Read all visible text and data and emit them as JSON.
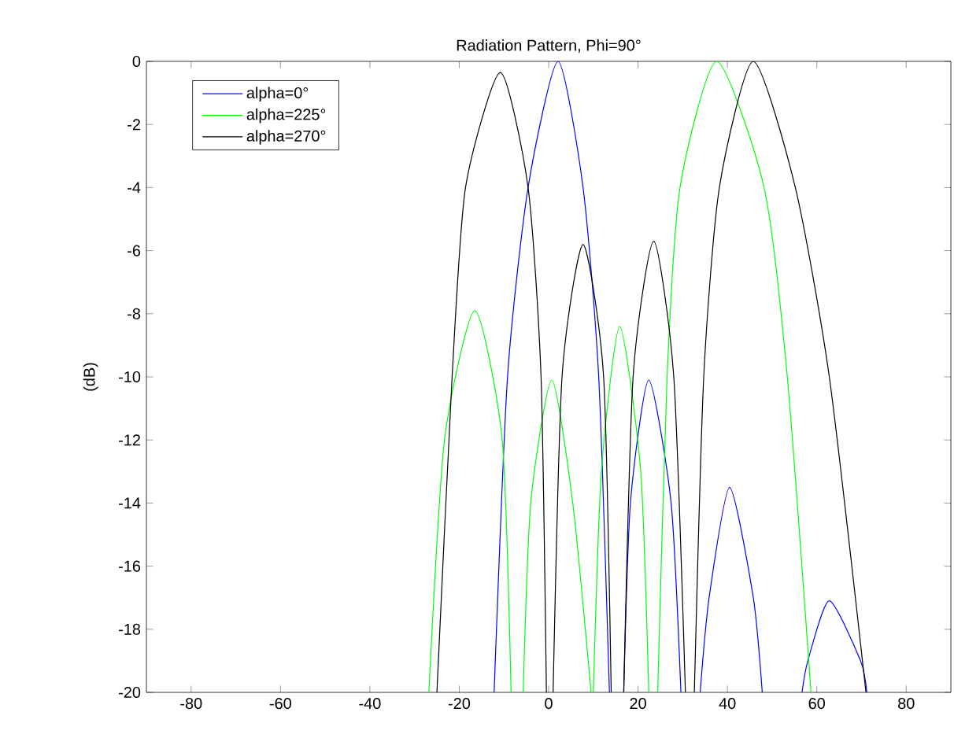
{
  "chart_data": {
    "type": "line",
    "title": "Radiation Pattern, Phi=90°",
    "ylabel": "(dB)",
    "xlim": [
      -90,
      90
    ],
    "xticks": [
      -80,
      -60,
      -40,
      -20,
      0,
      20,
      40,
      60,
      80
    ],
    "ylim": [
      -20,
      0
    ],
    "yticks": [
      -20,
      -18,
      -16,
      -14,
      -12,
      -10,
      -8,
      -6,
      -4,
      -2,
      0
    ],
    "legend": "top left",
    "grid": false,
    "marker": "none",
    "line_style": "solid",
    "series": [
      {
        "name": "alpha=0°",
        "color": "#0000ff",
        "x": [
          -12.2,
          -9.2,
          -4.6,
          2.1,
          7.7,
          11.2,
          13.6,
          15,
          16.8,
          18.3,
          22.4,
          27.4,
          29.6,
          31,
          33.9,
          35.9,
          40.5,
          45.8,
          47.8,
          50,
          56.7,
          58,
          62.8,
          69.8,
          71.2
        ],
        "values": [
          -20,
          -10,
          -4,
          0,
          -4,
          -10,
          -20,
          null,
          -20,
          -14,
          -10.1,
          -14,
          -20,
          null,
          -20,
          -17,
          -13.5,
          -17,
          -20,
          null,
          -20,
          -19,
          -17.1,
          -19,
          -20
        ]
      },
      {
        "name": "alpha=225°",
        "color": "#00ff00",
        "x": [
          -26.8,
          -23.3,
          -16.5,
          -10.4,
          -8.4,
          -7,
          -5.7,
          -4,
          0.7,
          5.4,
          9.5,
          9.8,
          10,
          11.8,
          15.9,
          20.6,
          22.4,
          23.5,
          24.4,
          26.5,
          29.4,
          37.6,
          48.2,
          53.4,
          58.7
        ],
        "values": [
          -20,
          -12,
          -7.9,
          -12,
          -20,
          null,
          -20,
          -14,
          -10.1,
          -14,
          -20,
          null,
          -20,
          -13,
          -8.4,
          -13,
          -20,
          null,
          -20,
          -10,
          -4,
          0,
          -4,
          -10,
          -20
        ]
      },
      {
        "name": "alpha=270°",
        "color": "#000000",
        "x": [
          -25,
          -21.6,
          -18.6,
          -10.8,
          -4.6,
          -1.7,
          -0.5,
          0.2,
          1,
          3,
          7.7,
          12.3,
          14,
          15.5,
          16.8,
          18.9,
          23.5,
          28,
          30.6,
          31.5,
          32.6,
          34.7,
          38.2,
          45.8,
          55.2,
          62.8,
          71
        ],
        "values": [
          -20,
          -10,
          -4,
          -0.35,
          -4,
          -10,
          -20,
          null,
          -20,
          -10,
          -5.8,
          -10,
          -20,
          null,
          -20,
          -10,
          -5.7,
          -10,
          -20,
          null,
          -20,
          -10,
          -4,
          0,
          -4,
          -10,
          -20
        ]
      }
    ]
  }
}
